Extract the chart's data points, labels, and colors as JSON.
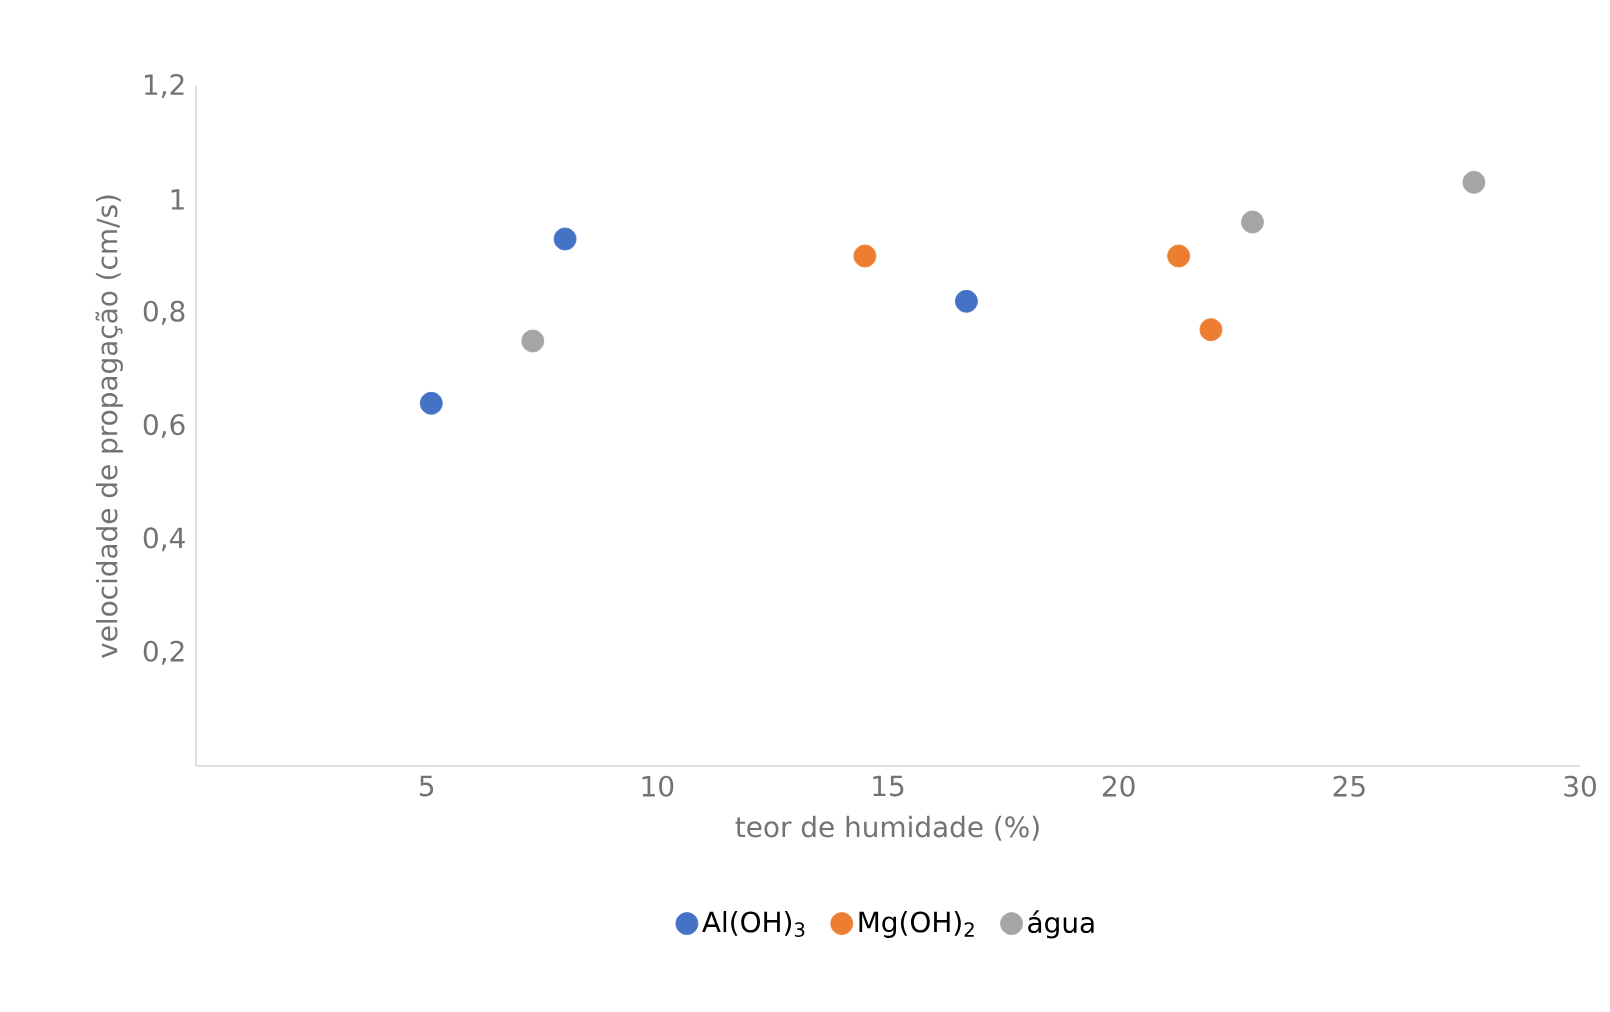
{
  "chart_data": {
    "type": "scatter",
    "xlabel": "teor de humidade (%)",
    "ylabel": "velocidade de propagação (cm/s)",
    "xlim": [
      0,
      30
    ],
    "xticks": [
      5,
      10,
      15,
      20,
      25,
      30
    ],
    "ylim": [
      0,
      1.2
    ],
    "yticks": [
      {
        "value": 0.2,
        "label": "0,2"
      },
      {
        "value": 0.4,
        "label": "0,4"
      },
      {
        "value": 0.6,
        "label": "0,6"
      },
      {
        "value": 0.8,
        "label": "0,8"
      },
      {
        "value": 1,
        "label": "1"
      },
      {
        "value": 1.2,
        "label": "1,2"
      }
    ],
    "grid": false,
    "legend": "bottom",
    "series": [
      {
        "name": "Al(OH)$_{3}$",
        "color": "#4472c4",
        "x": [
          5.1,
          8.0,
          16.7
        ],
        "values": [
          0.64,
          0.93,
          0.82
        ]
      },
      {
        "name": "Mg(OH)$_{2}$",
        "color": "#ed7d31",
        "x": [
          14.5,
          21.3,
          22.0
        ],
        "values": [
          0.9,
          0.9,
          0.77
        ]
      },
      {
        "name": "água",
        "color": "#a5a5a5",
        "x": [
          7.3,
          22.9,
          27.7
        ],
        "values": [
          0.75,
          0.96,
          1.03
        ]
      }
    ]
  }
}
